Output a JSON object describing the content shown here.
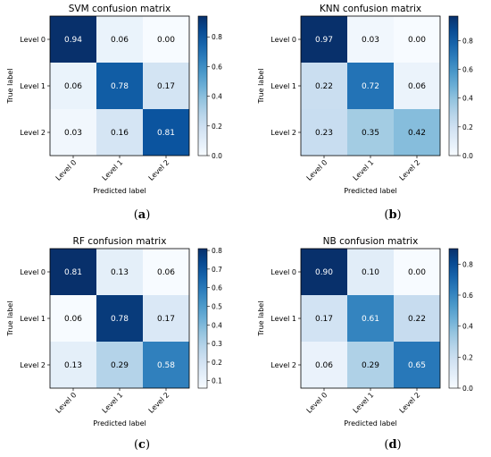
{
  "chart_data": [
    {
      "type": "heatmap",
      "title": "SVM confusion matrix",
      "xlabel": "Predicted label",
      "ylabel": "True label",
      "x_categories": [
        "Level 0",
        "Level 1",
        "Level 2"
      ],
      "y_categories": [
        "Level 0",
        "Level 1",
        "Level 2"
      ],
      "values": [
        [
          0.94,
          0.06,
          0.0
        ],
        [
          0.06,
          0.78,
          0.17
        ],
        [
          0.03,
          0.16,
          0.81
        ]
      ],
      "value_labels": [
        [
          "0.94",
          "0.06",
          "0.00"
        ],
        [
          "0.06",
          "0.78",
          "0.17"
        ],
        [
          "0.03",
          "0.16",
          "0.81"
        ]
      ],
      "colorbar": {
        "range": [
          0,
          0.94
        ],
        "ticks": [
          0.0,
          0.2,
          0.4,
          0.6,
          0.8
        ],
        "tick_labels": [
          "0.0",
          "0.2",
          "0.4",
          "0.6",
          "0.8"
        ],
        "colormap": "Blues"
      },
      "caption_letter": "a"
    },
    {
      "type": "heatmap",
      "title": "KNN confusion matrix",
      "xlabel": "Predicted label",
      "ylabel": "True label",
      "x_categories": [
        "Level 0",
        "Level 1",
        "Level 2"
      ],
      "y_categories": [
        "Level 0",
        "Level 1",
        "Level 2"
      ],
      "values": [
        [
          0.97,
          0.03,
          0.0
        ],
        [
          0.22,
          0.72,
          0.06
        ],
        [
          0.23,
          0.35,
          0.42
        ]
      ],
      "value_labels": [
        [
          "0.97",
          "0.03",
          "0.00"
        ],
        [
          "0.22",
          "0.72",
          "0.06"
        ],
        [
          "0.23",
          "0.35",
          "0.42"
        ]
      ],
      "colorbar": {
        "range": [
          0,
          0.97
        ],
        "ticks": [
          0.0,
          0.2,
          0.4,
          0.6,
          0.8
        ],
        "tick_labels": [
          "0.0",
          "0.2",
          "0.4",
          "0.6",
          "0.8"
        ],
        "colormap": "Blues"
      },
      "caption_letter": "b"
    },
    {
      "type": "heatmap",
      "title": "RF confusion matrix",
      "xlabel": "Predicted label",
      "ylabel": "True label",
      "x_categories": [
        "Level 0",
        "Level 1",
        "Level 2"
      ],
      "y_categories": [
        "Level 0",
        "Level 1",
        "Level 2"
      ],
      "values": [
        [
          0.81,
          0.13,
          0.06
        ],
        [
          0.06,
          0.78,
          0.17
        ],
        [
          0.13,
          0.29,
          0.58
        ]
      ],
      "value_labels": [
        [
          "0.81",
          "0.13",
          "0.06"
        ],
        [
          "0.06",
          "0.78",
          "0.17"
        ],
        [
          "0.13",
          "0.29",
          "0.58"
        ]
      ],
      "colorbar": {
        "range": [
          0.06,
          0.81
        ],
        "ticks": [
          0.1,
          0.2,
          0.3,
          0.4,
          0.5,
          0.6,
          0.7,
          0.8
        ],
        "tick_labels": [
          "0.1",
          "0.2",
          "0.3",
          "0.4",
          "0.5",
          "0.6",
          "0.7",
          "0.8"
        ],
        "colormap": "Blues"
      },
      "caption_letter": "c"
    },
    {
      "type": "heatmap",
      "title": "NB confusion matrix",
      "xlabel": "Predicted label",
      "ylabel": "True label",
      "x_categories": [
        "Level 0",
        "Level 1",
        "Level 2"
      ],
      "y_categories": [
        "Level 0",
        "Level 1",
        "Level 2"
      ],
      "values": [
        [
          0.9,
          0.1,
          0.0
        ],
        [
          0.17,
          0.61,
          0.22
        ],
        [
          0.06,
          0.29,
          0.65
        ]
      ],
      "value_labels": [
        [
          "0.90",
          "0.10",
          "0.00"
        ],
        [
          "0.17",
          "0.61",
          "0.22"
        ],
        [
          "0.06",
          "0.29",
          "0.65"
        ]
      ],
      "colorbar": {
        "range": [
          0,
          0.9
        ],
        "ticks": [
          0.0,
          0.2,
          0.4,
          0.6,
          0.8
        ],
        "tick_labels": [
          "0.0",
          "0.2",
          "0.4",
          "0.6",
          "0.8"
        ],
        "colormap": "Blues"
      },
      "caption_letter": "d"
    }
  ]
}
